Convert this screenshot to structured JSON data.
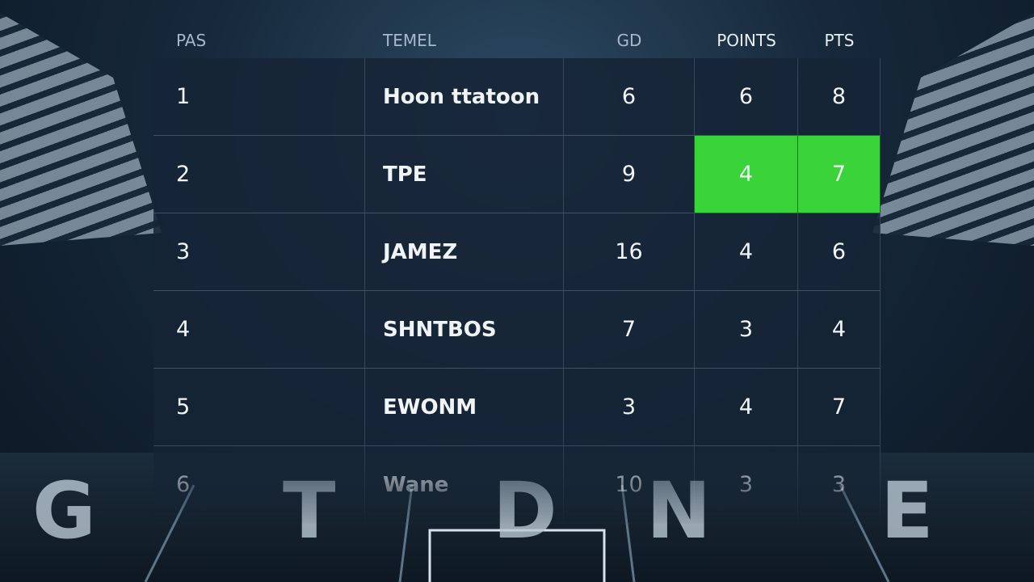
{
  "table": {
    "headers": [
      "PAS",
      "TEMEL",
      "GD",
      "POINTS",
      "PTS"
    ],
    "rows": [
      [
        1,
        "Hoon ttatoon",
        6,
        6,
        8
      ],
      [
        2,
        "TPE",
        9,
        4,
        7
      ],
      [
        3,
        "JAMEZ",
        16,
        4,
        6
      ],
      [
        4,
        "SHNTBOS",
        7,
        3,
        4
      ],
      [
        5,
        "EWONM",
        3,
        4,
        7
      ],
      [
        6,
        "Wane",
        10,
        3,
        3
      ]
    ]
  },
  "field": {
    "letters": [
      "G",
      "T",
      "D",
      "N",
      "E"
    ]
  }
}
